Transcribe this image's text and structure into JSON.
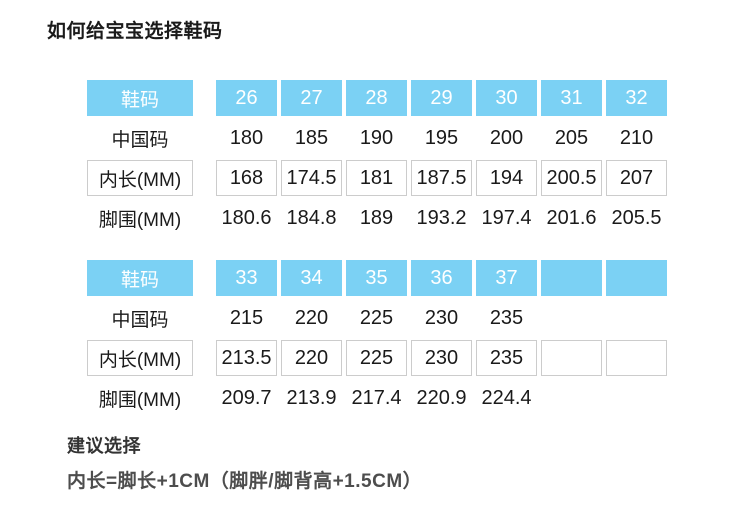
{
  "page": {
    "title": "如何给宝宝选择鞋码"
  },
  "colors": {
    "header_blue": "#7BD1F4",
    "header_text": "#ffffff",
    "cell_border": "#cccccc",
    "text_dark": "#1a1a1a",
    "note_heading": "#333333",
    "note_text": "#4d4d4d"
  },
  "tables": [
    {
      "header_label": "鞋码",
      "sizes": [
        "26",
        "27",
        "28",
        "29",
        "30",
        "31",
        "32"
      ],
      "rows": [
        {
          "label": "中国码",
          "boxed": false,
          "values": [
            "180",
            "185",
            "190",
            "195",
            "200",
            "205",
            "210"
          ]
        },
        {
          "label": "内长(MM)",
          "boxed": true,
          "values": [
            "168",
            "174.5",
            "181",
            "187.5",
            "194",
            "200.5",
            "207"
          ]
        },
        {
          "label": "脚围(MM)",
          "boxed": false,
          "values": [
            "180.6",
            "184.8",
            "189",
            "193.2",
            "197.4",
            "201.6",
            "205.5"
          ]
        }
      ]
    },
    {
      "header_label": "鞋码",
      "sizes": [
        "33",
        "34",
        "35",
        "36",
        "37",
        "",
        ""
      ],
      "rows": [
        {
          "label": "中国码",
          "boxed": false,
          "values": [
            "215",
            "220",
            "225",
            "230",
            "235",
            "",
            ""
          ]
        },
        {
          "label": "内长(MM)",
          "boxed": true,
          "values": [
            "213.5",
            "220",
            "225",
            "230",
            "235",
            "",
            ""
          ]
        },
        {
          "label": "脚围(MM)",
          "boxed": false,
          "values": [
            "209.7",
            "213.9",
            "217.4",
            "220.9",
            "224.4",
            "",
            ""
          ]
        }
      ]
    }
  ],
  "note": {
    "heading": "建议选择",
    "body": "内长=脚长+1CM（脚胖/脚背高+1.5CM）"
  },
  "chart_data": [
    {
      "type": "table",
      "title": "如何给宝宝选择鞋码",
      "columns": [
        "鞋码",
        "26",
        "27",
        "28",
        "29",
        "30",
        "31",
        "32"
      ],
      "rows": [
        [
          "中国码",
          "180",
          "185",
          "190",
          "195",
          "200",
          "205",
          "210"
        ],
        [
          "内长(MM)",
          "168",
          "174.5",
          "181",
          "187.5",
          "194",
          "200.5",
          "207"
        ],
        [
          "脚围(MM)",
          "180.6",
          "184.8",
          "189",
          "193.2",
          "197.4",
          "201.6",
          "205.5"
        ]
      ]
    },
    {
      "type": "table",
      "columns": [
        "鞋码",
        "33",
        "34",
        "35",
        "36",
        "37",
        "",
        ""
      ],
      "rows": [
        [
          "中国码",
          "215",
          "220",
          "225",
          "230",
          "235",
          "",
          ""
        ],
        [
          "内长(MM)",
          "213.5",
          "220",
          "225",
          "230",
          "235",
          "",
          ""
        ],
        [
          "脚围(MM)",
          "209.7",
          "213.9",
          "217.4",
          "220.9",
          "224.4",
          "",
          ""
        ]
      ]
    }
  ]
}
